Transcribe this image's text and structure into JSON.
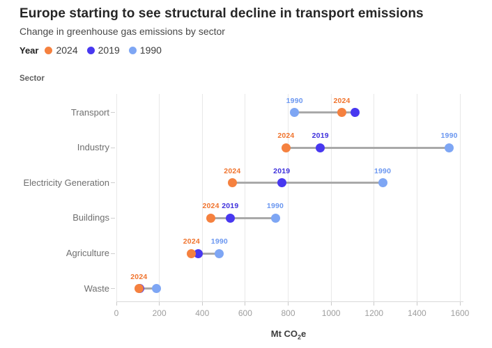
{
  "header": {
    "title": "Europe starting to see structural decline in transport emissions",
    "subtitle": "Change in greenhouse gas emissions by sector"
  },
  "legend": {
    "label": "Year",
    "items": [
      {
        "year": "2024",
        "color": "#F5813F"
      },
      {
        "year": "2019",
        "color": "#4838F0"
      },
      {
        "year": "1990",
        "color": "#7EA6F4"
      }
    ]
  },
  "chart_data": {
    "type": "dumbbell-dot-plot",
    "title": "Europe starting to see structural decline in transport emissions",
    "subtitle": "Change in greenhouse gas emissions by sector",
    "y_axis_label": "Sector",
    "x_axis_title": {
      "prefix": "Mt CO",
      "sub": "2",
      "suffix": "e"
    },
    "xlim": [
      0,
      1600
    ],
    "x_ticks": [
      0,
      200,
      400,
      600,
      800,
      1000,
      1200,
      1400,
      1600
    ],
    "grid": true,
    "legend_position": "top-left",
    "categories": [
      "Transport",
      "Industry",
      "Electricity Generation",
      "Buildings",
      "Agriculture",
      "Waste"
    ],
    "series": [
      {
        "name": "2024",
        "color": "#F5813F",
        "label_color": "#F0742E",
        "values": [
          1050,
          790,
          540,
          440,
          350,
          105
        ]
      },
      {
        "name": "2019",
        "color": "#4838F0",
        "label_color": "#3E30DC",
        "values": [
          1110,
          950,
          770,
          530,
          380,
          110
        ]
      },
      {
        "name": "1990",
        "color": "#7EA6F4",
        "label_color": "#6B97F0",
        "values": [
          830,
          1550,
          1240,
          740,
          480,
          185
        ]
      }
    ],
    "point_labels_shown": [
      [
        "1990",
        "2024"
      ],
      [
        "2024",
        "2019",
        "1990"
      ],
      [
        "2024",
        "2019",
        "1990"
      ],
      [
        "2024",
        "2019",
        "1990"
      ],
      [
        "2024",
        "1990"
      ],
      [
        "2024"
      ]
    ],
    "style": {
      "connector_color": "#A9A9A9",
      "gridline_color": "#E8E8E8",
      "axis_line_color": "#D9D9D9",
      "tick_color": "#C9C9C9"
    }
  }
}
